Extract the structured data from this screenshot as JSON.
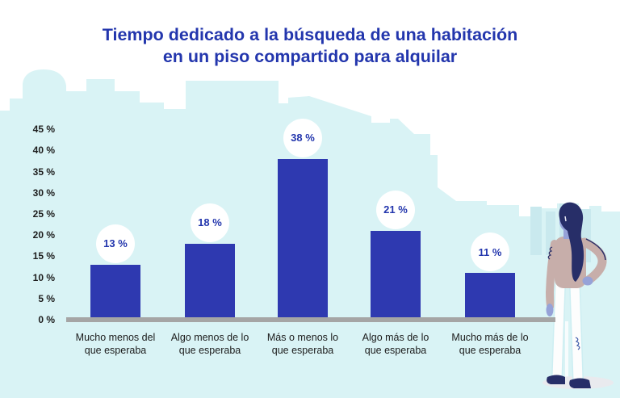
{
  "title": {
    "line1": "Tiempo dedicado a la búsqueda de una habitación",
    "line2": "en un piso compartido para alquilar"
  },
  "chart_data": {
    "type": "bar",
    "title": "Tiempo dedicado a la búsqueda de una habitación en un piso compartido para alquilar",
    "categories": [
      "Mucho menos del que esperaba",
      "Algo menos de lo que esperaba",
      "Más o menos lo que esperaba",
      "Algo más de lo que esperaba",
      "Mucho más de lo que esperaba"
    ],
    "values": [
      13,
      18,
      38,
      21,
      11
    ],
    "value_labels": [
      "13 %",
      "18 %",
      "38 %",
      "21 %",
      "11 %"
    ],
    "xlabel": "",
    "ylabel": "",
    "ylim": [
      0,
      45
    ],
    "ytick_step": 5,
    "ytick_labels": [
      "45 %",
      "40 %",
      "35 %",
      "30 %",
      "25 %",
      "20 %",
      "15 %",
      "10 %",
      "5 %",
      "0 %"
    ],
    "grid": false,
    "legend": false
  },
  "bars": [
    {
      "label_line1": "Mucho menos del",
      "label_line2": "que esperaba",
      "value": 13,
      "value_label": "13 %"
    },
    {
      "label_line1": "Algo menos de lo",
      "label_line2": "que esperaba",
      "value": 18,
      "value_label": "18 %"
    },
    {
      "label_line1": "Más o menos lo",
      "label_line2": "que esperaba",
      "value": 38,
      "value_label": "38 %"
    },
    {
      "label_line1": "Algo más de lo",
      "label_line2": "que esperaba",
      "value": 21,
      "value_label": "21 %"
    },
    {
      "label_line1": "Mucho más de lo",
      "label_line2": "que esperaba",
      "value": 11,
      "value_label": "11 %"
    }
  ],
  "colors": {
    "bar_blue": "#2e39b0",
    "accent_blue": "#2336ad",
    "skyline_cyan": "#d9f3f5",
    "skyline_building_cyan": "#c9e9ee",
    "baseline_gray": "#a5a5a5",
    "text_dark": "#1c1c1c"
  },
  "illustration": {
    "background": "city-skyline-silhouette",
    "figure": "woman-standing-hand-on-hip"
  }
}
